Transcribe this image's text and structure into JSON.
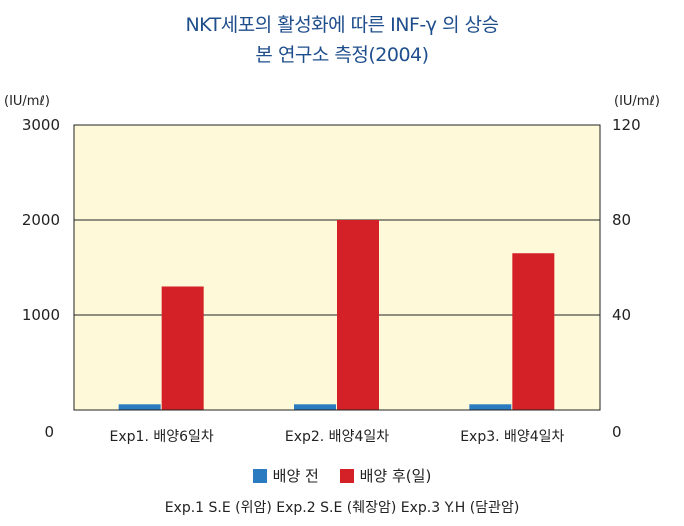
{
  "title_line1": "NKT세포의 활성화에 따른 INF-γ  의 상승",
  "title_line2": "본 연구소 측정(2004)",
  "left_unit": "(IU/mℓ)",
  "right_unit": "(IU/mℓ)",
  "left_ticks": [
    "0",
    "1000",
    "2000",
    "3000"
  ],
  "right_ticks": [
    "0",
    "40",
    "80",
    "120"
  ],
  "footnote": "Exp.1  S.E (위암)  Exp.2  S.E (췌장암)  Exp.3  Y.H (담관암)",
  "colors": {
    "before": "#2a7bbf",
    "after": "#d42027",
    "plot_bg": "#fdf9d9"
  },
  "chart_data": {
    "type": "bar",
    "title": "NKT세포의 활성화에 따른 INF-γ  의 상승",
    "subtitle": "본 연구소 측정(2004)",
    "categories": [
      "Exp1. 배양6일차",
      "Exp2. 배양4일차",
      "Exp3. 배양4일차"
    ],
    "ylim": [
      0,
      3000
    ],
    "y2lim": [
      0,
      120
    ],
    "yticks": [
      0,
      1000,
      2000,
      3000
    ],
    "y2ticks": [
      0,
      40,
      80,
      120
    ],
    "grid": true,
    "legend_position": "bottom",
    "series": [
      {
        "name": "배양 전",
        "values": [
          60,
          60,
          60
        ]
      },
      {
        "name": "배양 후(일)",
        "values": [
          1300,
          2000,
          1650
        ]
      }
    ]
  }
}
